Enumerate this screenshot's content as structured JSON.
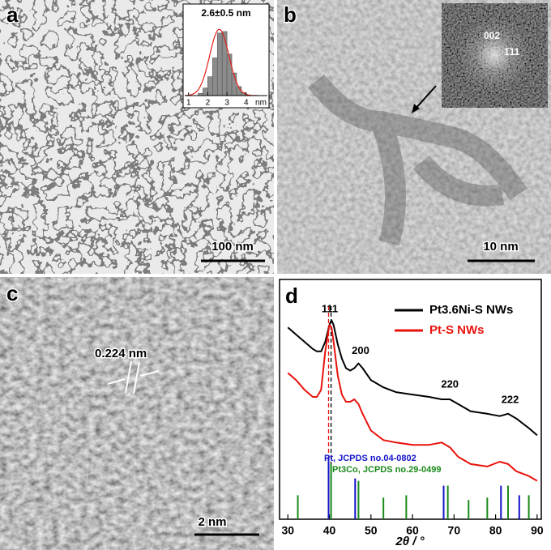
{
  "panels": [
    {
      "label": "a",
      "scale_bar": "100 nm"
    },
    {
      "label": "b",
      "scale_bar": "10 nm",
      "fft_labels": [
        "002",
        "1̄11"
      ]
    },
    {
      "label": "c",
      "scale_bar": "2 nm",
      "annotation": "0.224 nm"
    },
    {
      "label": "d"
    }
  ],
  "chart_data": [
    {
      "type": "histogram",
      "title": "2.6±0.5 nm",
      "bins": [
        1.5,
        1.75,
        2.0,
        2.25,
        2.5,
        2.75,
        3.0,
        3.25,
        3.5,
        3.75,
        4.0
      ],
      "values": [
        3,
        10,
        25,
        50,
        83,
        85,
        55,
        30,
        12,
        4
      ],
      "color": "#8c8c8c",
      "xlim": [
        0.8,
        4.6
      ],
      "xticks": [
        1,
        2,
        3,
        4
      ],
      "x_label": "nm",
      "ylim": [
        0,
        100
      ],
      "fit": {
        "mean": 2.6,
        "sd": 0.5,
        "peak": 88,
        "color": "#e0201b"
      }
    },
    {
      "type": "line",
      "x_label": "2θ / °",
      "xlim": [
        28,
        91
      ],
      "xticks": [
        30,
        40,
        50,
        60,
        70,
        80,
        90
      ],
      "ylim": [
        0,
        100
      ],
      "x": [
        30,
        32,
        34,
        36,
        37,
        38,
        39,
        40,
        40.5,
        41,
        42,
        43,
        44,
        45,
        46,
        47,
        48,
        50,
        53,
        56,
        60,
        64,
        67,
        69,
        71,
        74,
        78,
        81,
        83,
        85,
        88,
        90
      ],
      "series": [
        {
          "name": "Pt3.6Ni-S NWs",
          "color": "#000000",
          "values": [
            80,
            77,
            74,
            71,
            70,
            70,
            74,
            81,
            83,
            81,
            73,
            67,
            63,
            62,
            63,
            65,
            63,
            58,
            55,
            53,
            52,
            51,
            50,
            50,
            48,
            45,
            44,
            43,
            44,
            42,
            38,
            35
          ]
        },
        {
          "name": "Pt-S NWs",
          "color": "#e8120c",
          "values": [
            61,
            58,
            54,
            51,
            51,
            54,
            70,
            81,
            80,
            74,
            60,
            52,
            49,
            49,
            50,
            48,
            44,
            37,
            33,
            32,
            31,
            31,
            32,
            30,
            26,
            23,
            22,
            24,
            23,
            20,
            18,
            16
          ]
        }
      ],
      "reference_patterns": [
        {
          "name": "Pt, JCPDS no.04-0802",
          "color": "#1414c8",
          "positions": [
            39.8,
            46.2,
            67.5,
            81.3,
            85.7
          ],
          "intensities": [
            26,
            17,
            14,
            14,
            10
          ]
        },
        {
          "name": "Pt3Co, JCPDS no.29-0499",
          "color": "#1a8a1a",
          "positions": [
            32.4,
            40.4,
            47.0,
            53.0,
            58.5,
            68.5,
            73.5,
            78.0,
            83.0,
            88.0
          ],
          "intensities": [
            10,
            23,
            16,
            9,
            10,
            14,
            8,
            9,
            14,
            10
          ]
        }
      ],
      "dashed_lines": [
        {
          "x": 39.8,
          "color": "#e8120c"
        },
        {
          "x": 40.4,
          "color": "#000000"
        }
      ],
      "peak_labels": [
        {
          "text": "111",
          "x": 40.1
        },
        {
          "text": "200",
          "x": 47.5
        },
        {
          "text": "220",
          "x": 69
        },
        {
          "text": "222",
          "x": 83.5
        }
      ]
    }
  ]
}
